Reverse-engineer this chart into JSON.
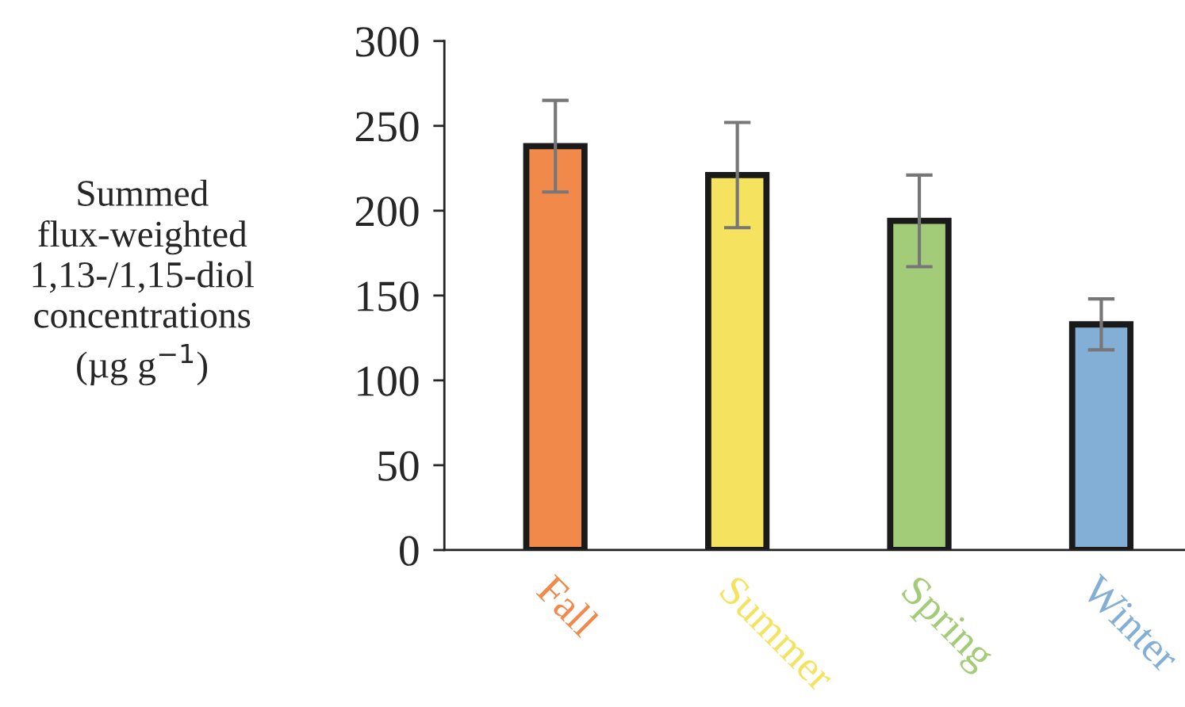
{
  "chart_data": {
    "type": "bar",
    "ylabel": "Summed\nflux-weighted\n1,13-/1,15-diol\nconcentrations\n(µg g$^{−1}$)",
    "categories": [
      "Fall",
      "Summer",
      "Spring",
      "Winter"
    ],
    "values": [
      238,
      221,
      194,
      133
    ],
    "errors": [
      27,
      31,
      27,
      15
    ],
    "colors": [
      "#f0894a",
      "#f5e35f",
      "#a3cc78",
      "#83aed6"
    ],
    "ylim": [
      0,
      300
    ],
    "yticks": [
      0,
      50,
      100,
      150,
      200,
      250,
      300
    ],
    "grid": false,
    "legend": false
  }
}
